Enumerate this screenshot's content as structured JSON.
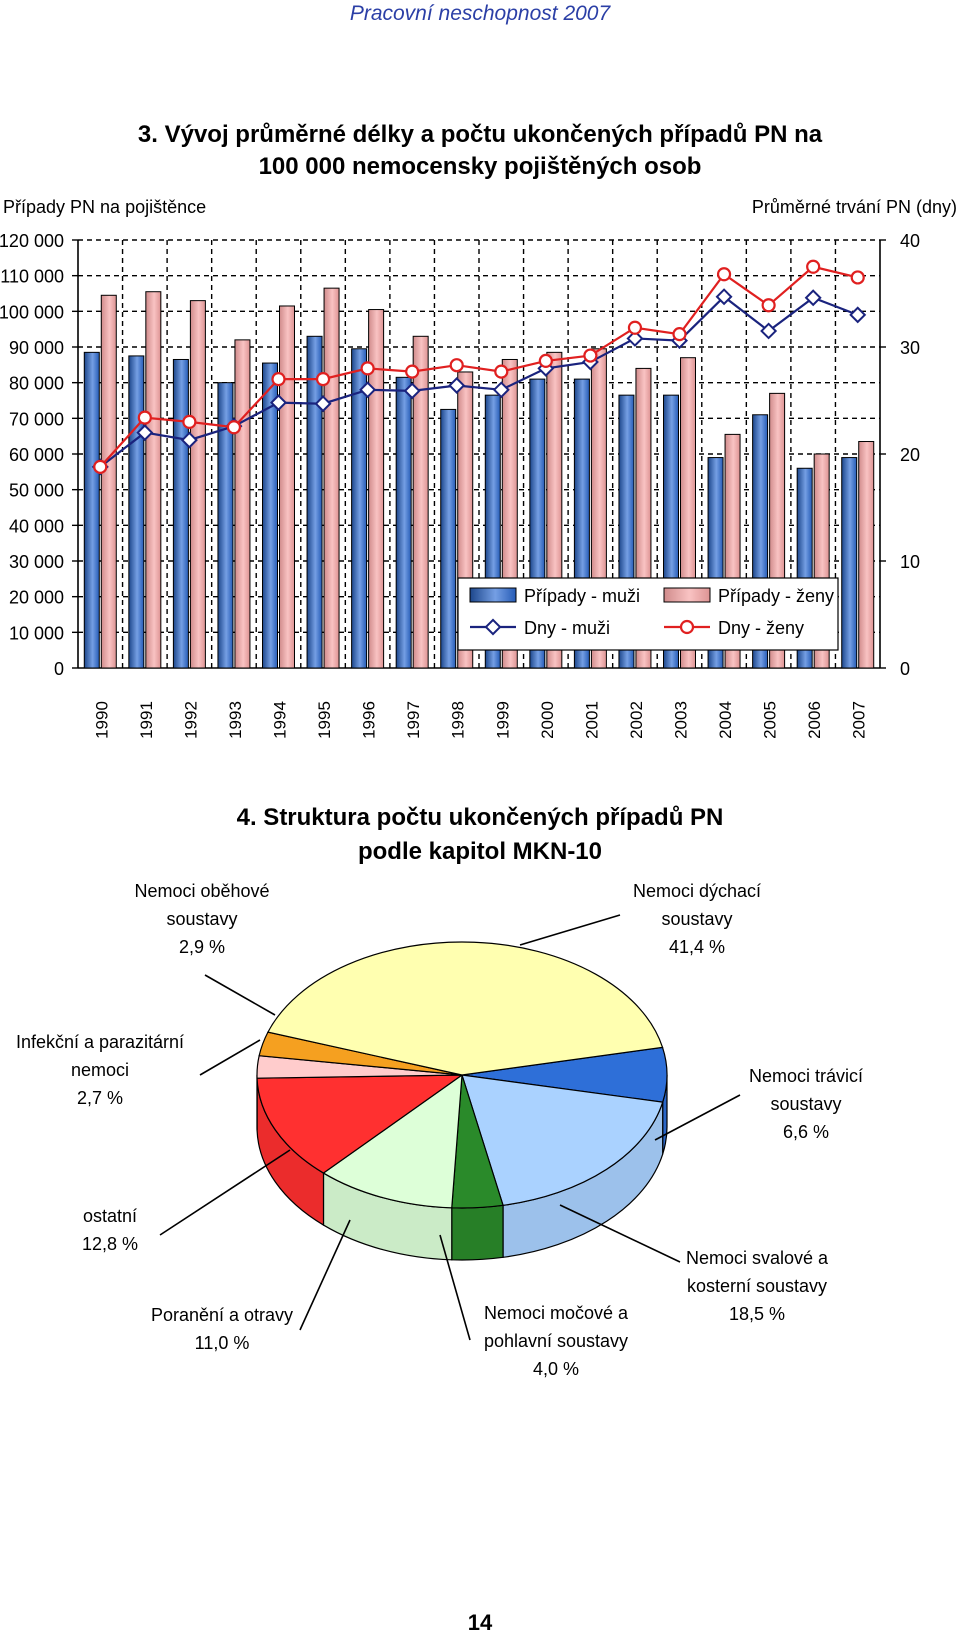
{
  "header": {
    "title": "Pracovní neschopnost 2007"
  },
  "page_number": "14",
  "chart_data": [
    {
      "type": "bar",
      "title": "3. Vývoj průměrné délky a počtu ukončených případů PN na 100 000 nemocensky pojištěných osob",
      "title_lines": [
        "3. Vývoj průměrné délky a počtu ukončených případů PN na",
        "100 000 nemocensky pojištěných osob"
      ],
      "ylabel": "Případy PN na pojištěnce",
      "y2label": "Průměrné trvání PN (dny)",
      "ylim": [
        0,
        120000
      ],
      "y2lim": [
        0,
        40
      ],
      "yticks": [
        "0",
        "10 000",
        "20 000",
        "30 000",
        "40 000",
        "50 000",
        "60 000",
        "70 000",
        "80 000",
        "90 000",
        "100 000",
        "110 000",
        "120 000"
      ],
      "y2ticks": [
        "0",
        "10",
        "20",
        "30",
        "40"
      ],
      "categories": [
        "1990",
        "1991",
        "1992",
        "1993",
        "1994",
        "1995",
        "1996",
        "1997",
        "1998",
        "1999",
        "2000",
        "2001",
        "2002",
        "2003",
        "2004",
        "2005",
        "2006",
        "2007"
      ],
      "series": [
        {
          "name": "Případy - muži",
          "kind": "bar",
          "axis": "left",
          "color": "#2b6bd6",
          "values": [
            88500,
            87500,
            86500,
            80000,
            85500,
            93000,
            89500,
            81500,
            72500,
            76500,
            81000,
            81000,
            76500,
            76500,
            59000,
            71000,
            56000,
            59000
          ]
        },
        {
          "name": "Případy - ženy",
          "kind": "bar",
          "axis": "left",
          "color": "#f5a3a3",
          "values": [
            104500,
            105500,
            103000,
            92000,
            101500,
            106500,
            100500,
            93000,
            83000,
            86500,
            88500,
            89500,
            84000,
            87000,
            65500,
            77000,
            60000,
            63500
          ]
        },
        {
          "name": "Dny - muži",
          "kind": "line",
          "axis": "right",
          "color": "#1a237e",
          "values": [
            18.8,
            22.0,
            21.3,
            22.6,
            24.8,
            24.7,
            26.0,
            25.9,
            26.4,
            26.0,
            28.0,
            28.6,
            30.8,
            30.6,
            34.7,
            31.5,
            34.6,
            33.0
          ]
        },
        {
          "name": "Dny - ženy",
          "kind": "line",
          "axis": "right",
          "color": "#e02020",
          "values": [
            18.8,
            23.4,
            23.0,
            22.5,
            27.0,
            27.0,
            28.0,
            27.7,
            28.3,
            27.7,
            28.7,
            29.2,
            31.8,
            31.2,
            36.8,
            33.9,
            37.5,
            36.5
          ]
        }
      ],
      "legend_position": "lower-right"
    },
    {
      "type": "pie",
      "title": "4. Struktura počtu ukončených případů PN podle kapitol MKN-10",
      "title_lines": [
        "4. Struktura počtu ukončených případů PN",
        "podle kapitol MKN-10"
      ],
      "slices": [
        {
          "name": "Nemoci dýchací soustavy",
          "value": 41.4,
          "value_label": "41,4 %",
          "label_lines": [
            "Nemoci dýchací",
            "soustavy",
            "41,4 %"
          ],
          "color": "#ffffb0"
        },
        {
          "name": "Nemoci trávicí soustavy",
          "value": 6.6,
          "value_label": "6,6 %",
          "label_lines": [
            "Nemoci trávicí",
            "soustavy",
            "6,6 %"
          ],
          "color": "#2e6fd8"
        },
        {
          "name": "Nemoci svalové a kosterní soustavy",
          "value": 18.5,
          "value_label": "18,5 %",
          "label_lines": [
            "Nemoci svalové a",
            "kosterní soustavy",
            "18,5 %"
          ],
          "color": "#aad2ff"
        },
        {
          "name": "Nemoci močové a pohlavní soustavy",
          "value": 4.0,
          "value_label": "4,0 %",
          "label_lines": [
            "Nemoci močové a",
            "pohlavní soustavy",
            "4,0 %"
          ],
          "color": "#2a8a2a"
        },
        {
          "name": "Poranění a otravy",
          "value": 11.0,
          "value_label": "11,0 %",
          "label_lines": [
            "Poranění a otravy",
            "11,0 %"
          ],
          "color": "#ddffd8"
        },
        {
          "name": "ostatní",
          "value": 12.8,
          "value_label": "12,8 %",
          "label_lines": [
            "ostatní",
            "12,8 %"
          ],
          "color": "#ff3030"
        },
        {
          "name": "Infekční a parazitární nemoci",
          "value": 2.7,
          "value_label": "2,7 %",
          "label_lines": [
            "Infekční a parazitární",
            "nemoci",
            "2,7 %"
          ],
          "color": "#ffcccc"
        },
        {
          "name": "Nemoci oběhové soustavy",
          "value": 2.9,
          "value_label": "2,9 %",
          "label_lines": [
            "Nemoci oběhové",
            "soustavy",
            "2,9 %"
          ],
          "color": "#f5a020"
        }
      ]
    }
  ]
}
